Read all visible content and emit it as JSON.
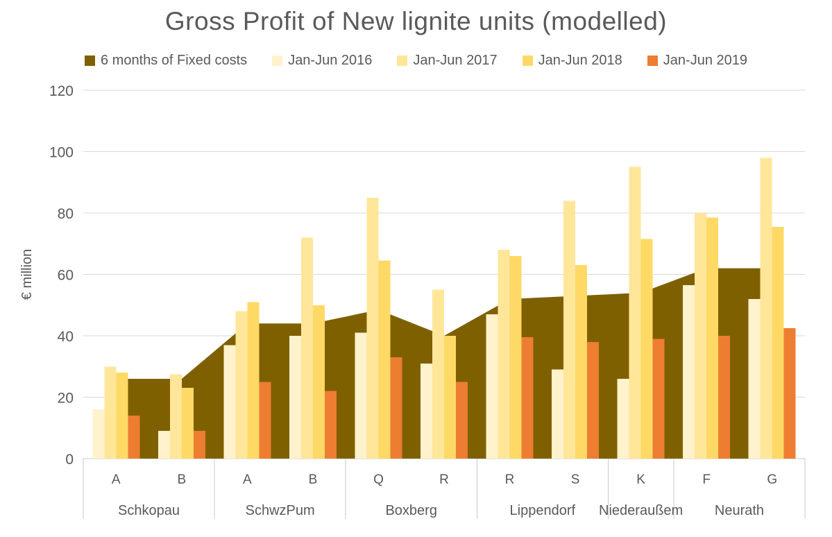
{
  "title": "Gross Profit of New lignite units (modelled)",
  "legend": {
    "items": [
      {
        "label": "6 months of Fixed costs",
        "color": "#7F6000"
      },
      {
        "label": "Jan-Jun 2016",
        "color": "#FFF2CC"
      },
      {
        "label": "Jan-Jun 2017",
        "color": "#FFE699"
      },
      {
        "label": "Jan-Jun 2018",
        "color": "#FFD966"
      },
      {
        "label": "Jan-Jun 2019",
        "color": "#ED7D31"
      }
    ]
  },
  "colors": {
    "text": "#595959",
    "gridline": "#D9D9D9",
    "axis_line": "#C9C9C9",
    "background": "#FFFFFF"
  },
  "chart_data": {
    "type": "bar",
    "title": "Gross Profit of New lignite units (modelled)",
    "xlabel": "",
    "ylabel": "€ million",
    "ylim": [
      0,
      120
    ],
    "ytick_step": 20,
    "grid": "horizontal",
    "legend_position": "top",
    "units": [
      "A",
      "B",
      "A",
      "B",
      "Q",
      "R",
      "R",
      "S",
      "K",
      "F",
      "G"
    ],
    "groups": [
      {
        "label": "Schkopau",
        "units": [
          "A",
          "B"
        ]
      },
      {
        "label": "SchwzPum",
        "units": [
          "A",
          "B"
        ]
      },
      {
        "label": "Boxberg",
        "units": [
          "Q",
          "R"
        ]
      },
      {
        "label": "Lippendorf",
        "units": [
          "R",
          "S"
        ]
      },
      {
        "label": "Niederaußem",
        "units": [
          "K"
        ]
      },
      {
        "label": "Neurath",
        "units": [
          "F",
          "G"
        ]
      }
    ],
    "series": [
      {
        "name": "6 months of Fixed costs",
        "type": "area",
        "color": "#7F6000",
        "values": [
          26,
          26,
          44,
          44,
          48.5,
          40,
          52,
          53,
          54,
          62,
          62
        ]
      },
      {
        "name": "Jan-Jun 2016",
        "type": "bar",
        "color": "#FFF2CC",
        "values": [
          16,
          9,
          37,
          40,
          41,
          31,
          47,
          29,
          26,
          56.5,
          52
        ]
      },
      {
        "name": "Jan-Jun 2017",
        "type": "bar",
        "color": "#FFE699",
        "values": [
          30,
          27.5,
          48,
          72,
          85,
          55,
          68,
          84,
          95,
          80,
          98
        ]
      },
      {
        "name": "Jan-Jun 2018",
        "type": "bar",
        "color": "#FFD966",
        "values": [
          28,
          23,
          51,
          50,
          64.5,
          40,
          66,
          63,
          71.5,
          78.5,
          75.5
        ]
      },
      {
        "name": "Jan-Jun 2019",
        "type": "bar",
        "color": "#ED7D31",
        "values": [
          14,
          9,
          25,
          22,
          33,
          25,
          39.5,
          38,
          39,
          40,
          42.5
        ]
      }
    ]
  }
}
